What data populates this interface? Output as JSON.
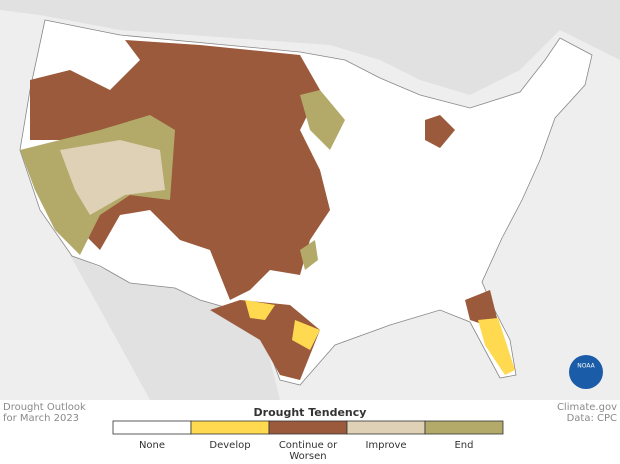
{
  "title_lines": [
    "Drought Outlook",
    "for March 2023"
  ],
  "credit_lines": [
    "Climate.gov",
    "Data: CPC"
  ],
  "logo": "NOAA",
  "legend": {
    "title": "Drought Tendency",
    "items": [
      {
        "label_lines": [
          "None"
        ],
        "color": "#ffffff"
      },
      {
        "label_lines": [
          "Develop"
        ],
        "color": "#ffd94f"
      },
      {
        "label_lines": [
          "Continue or",
          "Worsen"
        ],
        "color": "#9b5a3c"
      },
      {
        "label_lines": [
          "Improve"
        ],
        "color": "#ded1b6"
      },
      {
        "label_lines": [
          "End"
        ],
        "color": "#b3aa6a"
      }
    ]
  }
}
